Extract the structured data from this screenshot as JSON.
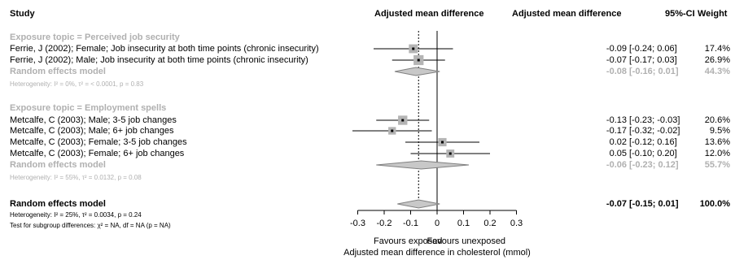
{
  "header": {
    "study": "Study",
    "plot_col": "Adjusted mean difference",
    "est_col": "Adjusted mean difference",
    "ci_col": "95%-CI",
    "weight_col": "Weight"
  },
  "groups": [
    {
      "title": "Exposure topic = Perceived job security",
      "studies": [
        {
          "label": "Ferrie, J (2002); Female; Job insecurity at both time points (chronic insecurity)",
          "est": "-0.09",
          "ci": "[-0.24;  0.06]",
          "weight": "17.4%"
        },
        {
          "label": "Ferrie, J (2002); Male; Job insecurity at both time points (chronic insecurity)",
          "est": "-0.07",
          "ci": "[-0.17;  0.03]",
          "weight": "26.9%"
        }
      ],
      "model": {
        "label": "Random effects model",
        "est": "-0.08",
        "ci": "[-0.16;  0.01]",
        "weight": "44.3%"
      },
      "heterogeneity": "Heterogeneity: I² = 0%, τ² = < 0.0001, p = 0.83"
    },
    {
      "title": "Exposure topic = Employment spells",
      "studies": [
        {
          "label": "Metcalfe, C (2003); Male; 3-5 job changes",
          "est": "-0.13",
          "ci": "[-0.23; -0.03]",
          "weight": "20.6%"
        },
        {
          "label": "Metcalfe, C (2003); Male; 6+ job changes",
          "est": "-0.17",
          "ci": "[-0.32; -0.02]",
          "weight": "9.5%"
        },
        {
          "label": "Metcalfe, C (2003); Female; 3-5 job changes",
          "est": "0.02",
          "ci": "[-0.12;  0.16]",
          "weight": "13.6%"
        },
        {
          "label": "Metcalfe, C (2003); Female; 6+ job changes",
          "est": "0.05",
          "ci": "[-0.10;  0.20]",
          "weight": "12.0%"
        }
      ],
      "model": {
        "label": "Random effects model",
        "est": "-0.06",
        "ci": "[-0.23;  0.12]",
        "weight": "55.7%"
      },
      "heterogeneity": "Heterogeneity: I² = 55%, τ² = 0.0132, p = 0.08"
    }
  ],
  "overall": {
    "label": "Random effects model",
    "est": "-0.07",
    "ci": "[-0.15;  0.01]",
    "weight": "100.0%",
    "heterogeneity": "Heterogeneity: I² = 25%, τ² = 0.0034, p = 0.24",
    "subgroup_test": "Test for subgroup differences: χ² = NA, df = NA (p = NA)"
  },
  "axis": {
    "ticks": [
      "-0.3",
      "-0.2",
      "-0.1",
      "0",
      "0.1",
      "0.2",
      "0.3"
    ],
    "left_label": "Favours exposed",
    "right_label": "Favours unexposed",
    "xlabel": "Adjusted mean difference in cholesterol (mmol)"
  },
  "colors": {
    "square": "#b4b4b4",
    "model_fill": "#c8c8c8",
    "subgroup_text": "#b0b0b0",
    "line": "#000000"
  },
  "chart_data": {
    "type": "forest",
    "xlabel": "Adjusted mean difference in cholesterol (mmol)",
    "xlim": [
      -0.3,
      0.3
    ],
    "null_line": 0,
    "overall_line": -0.07,
    "studies": [
      {
        "label": "Ferrie, J (2002); Female; Job insecurity at both time points (chronic insecurity)",
        "est": -0.09,
        "lo": -0.24,
        "hi": 0.06,
        "weight": 17.4
      },
      {
        "label": "Ferrie, J (2002); Male; Job insecurity at both time points (chronic insecurity)",
        "est": -0.07,
        "lo": -0.17,
        "hi": 0.03,
        "weight": 26.9
      },
      {
        "label": "Metcalfe, C (2003); Male; 3-5 job changes",
        "est": -0.13,
        "lo": -0.23,
        "hi": -0.03,
        "weight": 20.6
      },
      {
        "label": "Metcalfe, C (2003); Male; 6+ job changes",
        "est": -0.17,
        "lo": -0.32,
        "hi": -0.02,
        "weight": 9.5
      },
      {
        "label": "Metcalfe, C (2003); Female; 3-5 job changes",
        "est": 0.02,
        "lo": -0.12,
        "hi": 0.16,
        "weight": 13.6
      },
      {
        "label": "Metcalfe, C (2003); Female; 6+ job changes",
        "est": 0.05,
        "lo": -0.1,
        "hi": 0.2,
        "weight": 12.0
      }
    ],
    "models": [
      {
        "label": "Random effects model",
        "group": "Exposure topic = Perceived job security",
        "est": -0.08,
        "lo": -0.16,
        "hi": 0.01,
        "weight": 44.3
      },
      {
        "label": "Random effects model",
        "group": "Exposure topic = Employment spells",
        "est": -0.06,
        "lo": -0.23,
        "hi": 0.12,
        "weight": 55.7
      },
      {
        "label": "Random effects model",
        "group": "overall",
        "est": -0.07,
        "lo": -0.15,
        "hi": 0.01,
        "weight": 100.0
      }
    ]
  }
}
